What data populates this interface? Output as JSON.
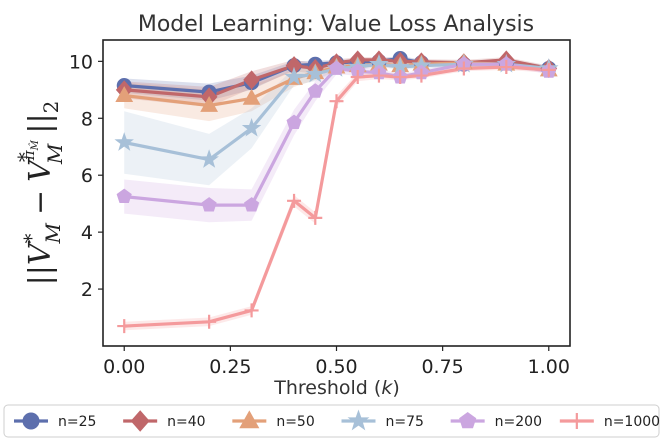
{
  "chart_data": {
    "type": "line",
    "title": "Model Learning: Value Loss Analysis",
    "xlabel": "Threshold (k)",
    "ylabel": "||V*_M − V*_M^{π_{M̂_{A_k}}}||_2",
    "ylabel_parts": {
      "open": "||V",
      "star1": "*",
      "sub1": "M",
      "minus": "−",
      "v2": "V",
      "sup2": "π",
      "sup2sub": "M̂",
      "sub2": "M",
      "star2": "*",
      "close": "||",
      "close_sub": "2"
    },
    "xlim": [
      -0.05,
      1.05
    ],
    "ylim": [
      0,
      10.75
    ],
    "xticks": [
      0.0,
      0.25,
      0.5,
      0.75,
      1.0
    ],
    "xtick_labels": [
      "0.00",
      "0.25",
      "0.50",
      "0.75",
      "1.00"
    ],
    "yticks": [
      2,
      4,
      6,
      8,
      10
    ],
    "ytick_labels": [
      "2",
      "4",
      "6",
      "8",
      "10"
    ],
    "x": [
      0.0,
      0.2,
      0.3,
      0.4,
      0.45,
      0.5,
      0.55,
      0.6,
      0.65,
      0.7,
      0.8,
      0.9,
      1.0
    ],
    "series": [
      {
        "name": "n=25",
        "color": "#5d6fad",
        "marker": "circle",
        "values": [
          9.15,
          8.92,
          9.25,
          9.85,
          9.9,
          9.95,
          9.98,
          10.0,
          10.1,
          9.95,
          9.9,
          9.95,
          9.75
        ],
        "band": [
          0.25,
          0.3,
          0.25,
          0.15,
          0.12,
          0.1,
          0.1,
          0.1,
          0.1,
          0.1,
          0.1,
          0.1,
          0.1
        ]
      },
      {
        "name": "n=40",
        "color": "#c0676a",
        "marker": "diamond",
        "values": [
          9.0,
          8.75,
          9.35,
          9.85,
          9.75,
          9.95,
          10.05,
          10.05,
          10.0,
          9.98,
          9.95,
          10.05,
          9.75
        ],
        "band": [
          0.3,
          0.35,
          0.3,
          0.2,
          0.18,
          0.12,
          0.1,
          0.1,
          0.1,
          0.1,
          0.1,
          0.1,
          0.1
        ]
      },
      {
        "name": "n=50",
        "color": "#e3a079",
        "marker": "triangle",
        "values": [
          8.8,
          8.45,
          8.7,
          9.4,
          9.6,
          9.8,
          9.85,
          9.9,
          9.85,
          9.9,
          9.95,
          9.9,
          9.7
        ],
        "band": [
          0.45,
          0.55,
          0.45,
          0.3,
          0.25,
          0.15,
          0.1,
          0.1,
          0.1,
          0.1,
          0.1,
          0.1,
          0.1
        ]
      },
      {
        "name": "n=75",
        "color": "#a7c0d8",
        "marker": "star",
        "values": [
          7.15,
          6.55,
          7.65,
          9.45,
          9.55,
          9.75,
          9.8,
          9.9,
          9.8,
          9.85,
          9.9,
          9.9,
          9.75
        ],
        "band": [
          1.1,
          0.9,
          0.7,
          0.3,
          0.25,
          0.15,
          0.1,
          0.1,
          0.1,
          0.1,
          0.1,
          0.1,
          0.1
        ]
      },
      {
        "name": "n=200",
        "color": "#cba6e0",
        "marker": "pentagon",
        "values": [
          5.25,
          4.95,
          4.95,
          7.85,
          8.95,
          9.75,
          9.65,
          9.6,
          9.45,
          9.6,
          9.9,
          9.9,
          9.65
        ],
        "band": [
          0.6,
          0.6,
          0.55,
          0.45,
          0.35,
          0.2,
          0.15,
          0.12,
          0.12,
          0.1,
          0.1,
          0.1,
          0.1
        ]
      },
      {
        "name": "n=1000",
        "color": "#f49a9c",
        "marker": "plus",
        "values": [
          0.7,
          0.85,
          1.25,
          5.1,
          4.5,
          8.6,
          9.45,
          9.5,
          9.45,
          9.5,
          9.75,
          9.8,
          9.7
        ],
        "band": [
          0.15,
          0.15,
          0.15,
          0.2,
          0.2,
          0.2,
          0.15,
          0.12,
          0.12,
          0.1,
          0.1,
          0.1,
          0.1
        ]
      }
    ],
    "grid": false,
    "legend": "bottom"
  }
}
